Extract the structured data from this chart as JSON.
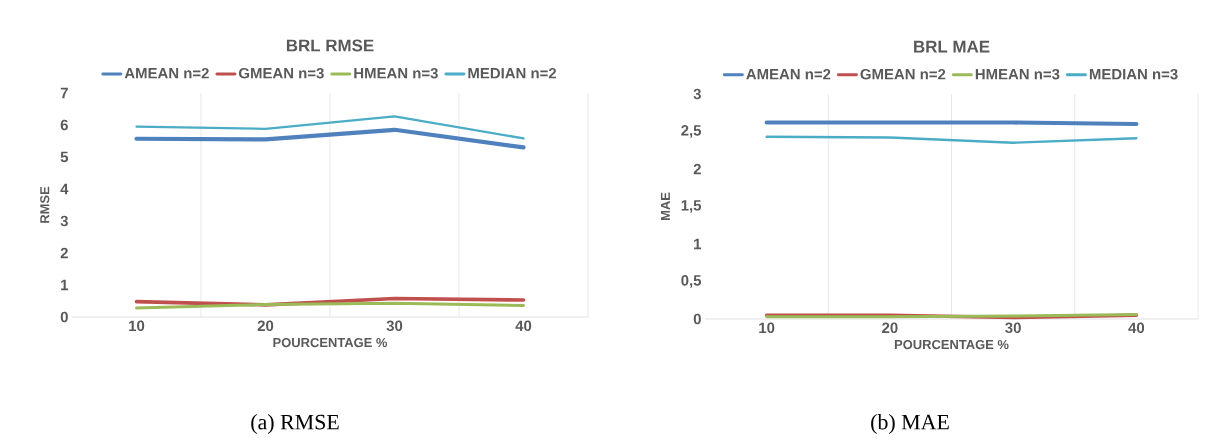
{
  "chart_data": [
    {
      "type": "line",
      "title": "BRL RMSE",
      "xlabel": "POURCENTAGE %",
      "ylabel": "RMSE",
      "categories": [
        "10",
        "20",
        "30",
        "40"
      ],
      "series": [
        {
          "name": "AMEAN n=2",
          "color": "#4f81bd",
          "values": [
            5.57,
            5.55,
            5.85,
            5.3
          ]
        },
        {
          "name": "GMEAN n=3",
          "color": "#c0504d",
          "values": [
            0.48,
            0.38,
            0.58,
            0.53
          ]
        },
        {
          "name": "HMEAN n=3",
          "color": "#9bbb59",
          "values": [
            0.28,
            0.39,
            0.43,
            0.36
          ]
        },
        {
          "name": "MEDIAN n=2",
          "color": "#4bacc6",
          "values": [
            5.95,
            5.88,
            6.27,
            5.58
          ]
        }
      ],
      "ylim": [
        0,
        7
      ],
      "yticks": [
        0,
        1,
        2,
        3,
        4,
        5,
        6,
        7
      ],
      "grid": "x",
      "legend": "top",
      "annotations": [
        "(a) RMSE"
      ]
    },
    {
      "type": "line",
      "title": "BRL MAE",
      "xlabel": "POURCENTAGE %",
      "ylabel": "MAE",
      "categories": [
        "10",
        "20",
        "30",
        "40"
      ],
      "series": [
        {
          "name": "AMEAN n=2",
          "color": "#4f81bd",
          "values": [
            2.62,
            2.62,
            2.62,
            2.6
          ]
        },
        {
          "name": "GMEAN n=2",
          "color": "#c0504d",
          "values": [
            0.05,
            0.05,
            0.02,
            0.05
          ]
        },
        {
          "name": "HMEAN n=3",
          "color": "#9bbb59",
          "values": [
            0.03,
            0.03,
            0.04,
            0.06
          ]
        },
        {
          "name": "MEDIAN n=3",
          "color": "#4bacc6",
          "values": [
            2.43,
            2.42,
            2.35,
            2.41
          ]
        }
      ],
      "ylim": [
        0,
        3
      ],
      "yticks": [
        0,
        {
          "value": 0.5,
          "label": "0,5"
        },
        1,
        {
          "value": 1.5,
          "label": "1,5"
        },
        2,
        {
          "value": 2.5,
          "label": "2,5"
        },
        3
      ],
      "grid": "x",
      "legend": "top",
      "annotations": [
        "(b) MAE"
      ]
    }
  ]
}
